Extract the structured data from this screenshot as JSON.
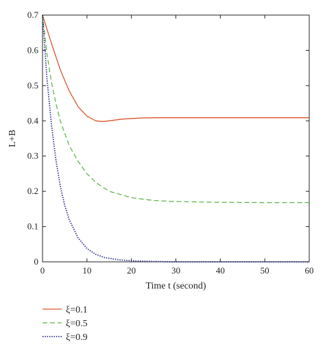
{
  "chart_data": {
    "type": "line",
    "xlabel": "Time t (second)",
    "ylabel": "L+B",
    "xlim": [
      0,
      60
    ],
    "ylim": [
      0,
      0.7
    ],
    "xticks": [
      0,
      10,
      20,
      30,
      40,
      50,
      60
    ],
    "yticks": [
      0,
      0.1,
      0.2,
      0.3,
      0.4,
      0.5,
      0.6,
      0.7
    ],
    "xtick_labels": [
      "0",
      "10",
      "20",
      "30",
      "40",
      "50",
      "60"
    ],
    "ytick_labels": [
      "0",
      "0.1",
      "0.2",
      "0.3",
      "0.4",
      "0.5",
      "0.6",
      "0.7"
    ],
    "grid": false,
    "legend_position": "below-left",
    "series": [
      {
        "name": "ξ=0.1",
        "color": "#d9542b",
        "style": "solid",
        "x": [
          0,
          2,
          4,
          6,
          8,
          10,
          12,
          13.5,
          15,
          18,
          22,
          26,
          30,
          40,
          50,
          60
        ],
        "y": [
          0.7,
          0.62,
          0.545,
          0.485,
          0.44,
          0.413,
          0.4,
          0.398,
          0.4,
          0.405,
          0.408,
          0.409,
          0.409,
          0.409,
          0.409,
          0.409
        ]
      },
      {
        "name": "ξ=0.5",
        "color": "#5fb548",
        "style": "dashed",
        "x": [
          0,
          1,
          2,
          3,
          4,
          6,
          8,
          10,
          12,
          15,
          20,
          25,
          30,
          40,
          50,
          60
        ],
        "y": [
          0.7,
          0.59,
          0.51,
          0.45,
          0.4,
          0.33,
          0.285,
          0.25,
          0.225,
          0.2,
          0.182,
          0.174,
          0.171,
          0.169,
          0.168,
          0.168
        ]
      },
      {
        "name": "ξ=0.9",
        "color": "#2b2e8f",
        "style": "dotted",
        "x": [
          0,
          1,
          2,
          3,
          4,
          5,
          6,
          8,
          10,
          12,
          14,
          17,
          20,
          25,
          30,
          40,
          50,
          60
        ],
        "y": [
          0.7,
          0.52,
          0.39,
          0.29,
          0.215,
          0.16,
          0.12,
          0.068,
          0.038,
          0.021,
          0.012,
          0.006,
          0.003,
          0.001,
          0.0,
          0.0,
          0.0,
          0.0
        ]
      }
    ]
  }
}
